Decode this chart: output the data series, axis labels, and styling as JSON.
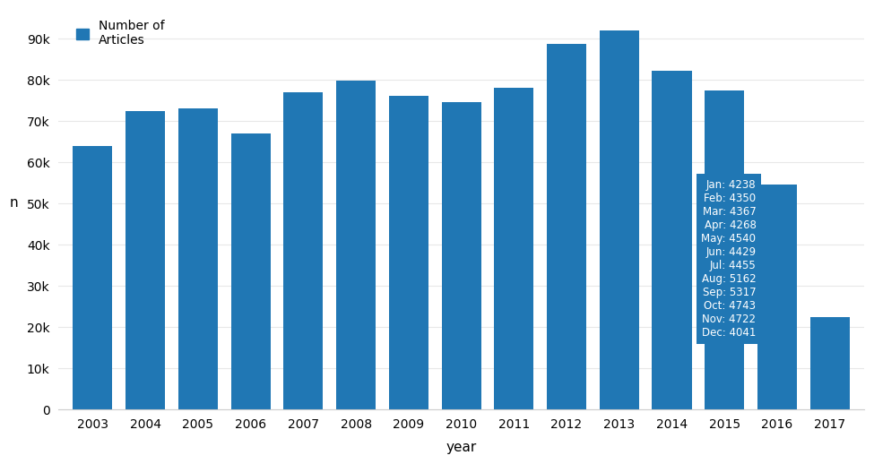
{
  "years": [
    2003,
    2004,
    2005,
    2006,
    2007,
    2008,
    2009,
    2010,
    2011,
    2012,
    2013,
    2014,
    2015,
    2016,
    2017
  ],
  "values": [
    64000,
    72500,
    73000,
    67000,
    77000,
    79800,
    76200,
    74700,
    78000,
    88800,
    92000,
    82200,
    77500,
    54500,
    22500
  ],
  "bar_color": "#2077b4",
  "xlabel": "year",
  "ylabel": "n",
  "ylim": [
    0,
    97000
  ],
  "yticks": [
    0,
    10000,
    20000,
    30000,
    40000,
    50000,
    60000,
    70000,
    80000,
    90000
  ],
  "ytick_labels": [
    "0",
    "10k",
    "20k",
    "30k",
    "40k",
    "50k",
    "60k",
    "70k",
    "80k",
    "90k"
  ],
  "legend_label": "Number of\nArticles",
  "legend_square_color": "#2077b4",
  "background_color": "#ffffff",
  "grid_color": "#e8e8e8",
  "tooltip_year": 2016,
  "tooltip_lines": [
    "Jan: 4238",
    "Feb: 4350",
    "Mar: 4367",
    "Apr: 4268",
    "May: 4540",
    "Jun: 4429",
    "Jul: 4455",
    "Aug: 5162",
    "Sep: 5317",
    "Oct: 4743",
    "Nov: 4722",
    "Dec: 4041"
  ],
  "tooltip_bg": "#2077b4",
  "tooltip_text_color": "#ffffff",
  "figsize": [
    9.75,
    5.18
  ],
  "dpi": 100
}
